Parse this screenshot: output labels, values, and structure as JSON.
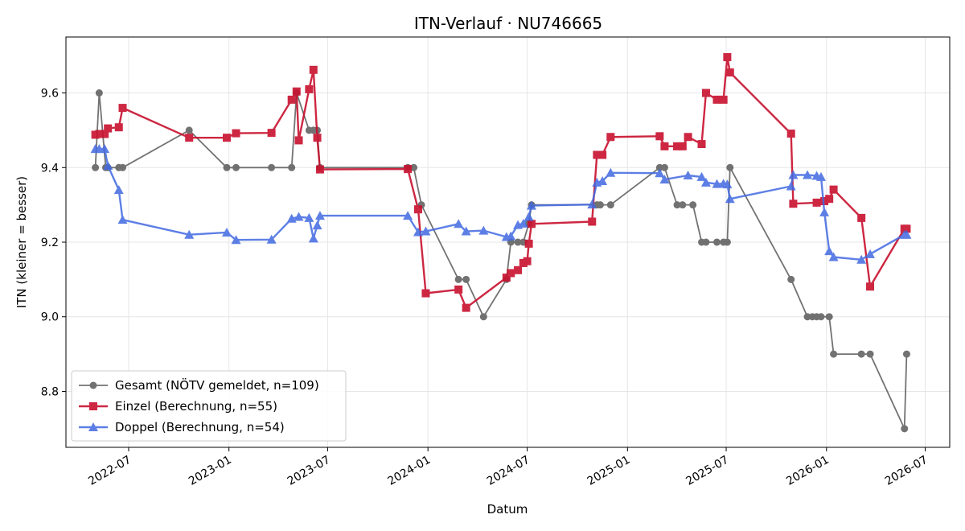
{
  "chart_data": {
    "type": "line",
    "title": "ITN-Verlauf · NU746665",
    "xlabel": "Datum",
    "ylabel": "ITN  (kleiner = besser)",
    "x_axis_type": "date",
    "xlim": [
      "2022-03-08",
      "2026-08-15"
    ],
    "ylim": [
      8.65,
      9.75
    ],
    "yticks": [
      8.8,
      9.0,
      9.2,
      9.4,
      9.6
    ],
    "xticks": [
      "2022-07-01",
      "2023-01-01",
      "2023-07-01",
      "2024-01-01",
      "2024-07-01",
      "2025-01-01",
      "2025-07-01",
      "2026-01-01",
      "2026-07-01"
    ],
    "xtick_labels": [
      "2022-07",
      "2023-01",
      "2023-07",
      "2024-01",
      "2024-07",
      "2025-01",
      "2025-07",
      "2026-01",
      "2026-07"
    ],
    "grid": true,
    "legend_position": "lower-left",
    "series": [
      {
        "name": "Gesamt (NÖTV gemeldet, n=109)",
        "color": "#444444",
        "marker": "circle",
        "points": [
          [
            "2022-05-01",
            9.4
          ],
          [
            "2022-05-08",
            9.6
          ],
          [
            "2022-05-20",
            9.4
          ],
          [
            "2022-05-24",
            9.4
          ],
          [
            "2022-06-13",
            9.4
          ],
          [
            "2022-06-20",
            9.4
          ],
          [
            "2022-10-20",
            9.5
          ],
          [
            "2022-12-28",
            9.4
          ],
          [
            "2023-01-14",
            9.4
          ],
          [
            "2023-03-20",
            9.4
          ],
          [
            "2023-04-26",
            9.4
          ],
          [
            "2023-05-05",
            9.6
          ],
          [
            "2023-05-28",
            9.5
          ],
          [
            "2023-06-05",
            9.5
          ],
          [
            "2023-06-12",
            9.5
          ],
          [
            "2023-06-17",
            9.4
          ],
          [
            "2023-11-25",
            9.4
          ],
          [
            "2023-12-06",
            9.4
          ],
          [
            "2023-12-20",
            9.3
          ],
          [
            "2024-02-26",
            9.1
          ],
          [
            "2024-03-11",
            9.1
          ],
          [
            "2024-04-12",
            9.0
          ],
          [
            "2024-05-24",
            9.1
          ],
          [
            "2024-06-01",
            9.2
          ],
          [
            "2024-06-14",
            9.2
          ],
          [
            "2024-06-24",
            9.2
          ],
          [
            "2024-07-04",
            9.25
          ],
          [
            "2024-07-09",
            9.3
          ],
          [
            "2024-11-06",
            9.3
          ],
          [
            "2024-11-12",
            9.3
          ],
          [
            "2024-12-01",
            9.3
          ],
          [
            "2025-03-01",
            9.4
          ],
          [
            "2025-03-10",
            9.4
          ],
          [
            "2025-04-02",
            9.3
          ],
          [
            "2025-04-12",
            9.3
          ],
          [
            "2025-05-01",
            9.3
          ],
          [
            "2025-05-17",
            9.2
          ],
          [
            "2025-05-25",
            9.2
          ],
          [
            "2025-06-14",
            9.2
          ],
          [
            "2025-06-26",
            9.2
          ],
          [
            "2025-07-03",
            9.2
          ],
          [
            "2025-07-08",
            9.4
          ],
          [
            "2025-10-28",
            9.1
          ],
          [
            "2025-11-27",
            9.0
          ],
          [
            "2025-12-06",
            9.0
          ],
          [
            "2025-12-14",
            9.0
          ],
          [
            "2025-12-22",
            9.0
          ],
          [
            "2026-01-06",
            9.0
          ],
          [
            "2026-01-14",
            8.9
          ],
          [
            "2026-03-06",
            8.9
          ],
          [
            "2026-03-22",
            8.9
          ],
          [
            "2026-05-24",
            8.7
          ],
          [
            "2026-05-28",
            8.9
          ]
        ]
      },
      {
        "name": "Einzel (Berechnung, n=55)",
        "color": "#c8102e",
        "marker": "square",
        "points": [
          [
            "2022-05-01",
            9.488
          ],
          [
            "2022-05-08",
            9.49
          ],
          [
            "2022-05-18",
            9.49
          ],
          [
            "2022-05-24",
            9.505
          ],
          [
            "2022-06-13",
            9.508
          ],
          [
            "2022-06-20",
            9.56
          ],
          [
            "2022-10-20",
            9.48
          ],
          [
            "2022-12-28",
            9.48
          ],
          [
            "2023-01-14",
            9.492
          ],
          [
            "2023-03-20",
            9.493
          ],
          [
            "2023-04-26",
            9.582
          ],
          [
            "2023-05-05",
            9.604
          ],
          [
            "2023-05-09",
            9.473
          ],
          [
            "2023-05-28",
            9.61
          ],
          [
            "2023-06-05",
            9.662
          ],
          [
            "2023-06-12",
            9.48
          ],
          [
            "2023-06-17",
            9.395
          ],
          [
            "2023-11-25",
            9.396
          ],
          [
            "2023-12-14",
            9.288
          ],
          [
            "2023-12-28",
            9.063
          ],
          [
            "2024-02-26",
            9.073
          ],
          [
            "2024-03-11",
            9.024
          ],
          [
            "2024-05-24",
            9.105
          ],
          [
            "2024-06-01",
            9.117
          ],
          [
            "2024-06-14",
            9.125
          ],
          [
            "2024-06-24",
            9.144
          ],
          [
            "2024-07-01",
            9.149
          ],
          [
            "2024-07-04",
            9.196
          ],
          [
            "2024-07-09",
            9.249
          ],
          [
            "2024-10-28",
            9.255
          ],
          [
            "2024-11-06",
            9.434
          ],
          [
            "2024-11-16",
            9.434
          ],
          [
            "2024-12-01",
            9.482
          ],
          [
            "2025-03-01",
            9.484
          ],
          [
            "2025-03-10",
            9.457
          ],
          [
            "2025-04-02",
            9.457
          ],
          [
            "2025-04-12",
            9.457
          ],
          [
            "2025-04-22",
            9.482
          ],
          [
            "2025-05-17",
            9.463
          ],
          [
            "2025-05-25",
            9.6
          ],
          [
            "2025-06-14",
            9.582
          ],
          [
            "2025-06-26",
            9.582
          ],
          [
            "2025-07-03",
            9.696
          ],
          [
            "2025-07-08",
            9.655
          ],
          [
            "2025-10-28",
            9.491
          ],
          [
            "2025-11-01",
            9.303
          ],
          [
            "2025-12-14",
            9.306
          ],
          [
            "2025-12-28",
            9.31
          ],
          [
            "2026-01-06",
            9.316
          ],
          [
            "2026-01-14",
            9.341
          ],
          [
            "2026-03-06",
            9.265
          ],
          [
            "2026-03-22",
            9.081
          ],
          [
            "2026-05-24",
            9.236
          ],
          [
            "2026-05-28",
            9.236
          ]
        ]
      },
      {
        "name": "Doppel (Berechnung, n=54)",
        "color": "#4169e1",
        "marker": "triangle",
        "points": [
          [
            "2022-05-01",
            9.45
          ],
          [
            "2022-05-08",
            9.45
          ],
          [
            "2022-05-18",
            9.45
          ],
          [
            "2022-05-24",
            9.405
          ],
          [
            "2022-06-13",
            9.34
          ],
          [
            "2022-06-20",
            9.26
          ],
          [
            "2022-10-20",
            9.22
          ],
          [
            "2022-12-28",
            9.226
          ],
          [
            "2023-01-14",
            9.206
          ],
          [
            "2023-03-20",
            9.207
          ],
          [
            "2023-04-26",
            9.263
          ],
          [
            "2023-05-09",
            9.268
          ],
          [
            "2023-05-28",
            9.265
          ],
          [
            "2023-06-05",
            9.21
          ],
          [
            "2023-06-12",
            9.245
          ],
          [
            "2023-06-17",
            9.271
          ],
          [
            "2023-11-25",
            9.271
          ],
          [
            "2023-12-14",
            9.227
          ],
          [
            "2023-12-28",
            9.229
          ],
          [
            "2024-02-26",
            9.249
          ],
          [
            "2024-03-11",
            9.229
          ],
          [
            "2024-04-12",
            9.231
          ],
          [
            "2024-05-24",
            9.214
          ],
          [
            "2024-06-01",
            9.216
          ],
          [
            "2024-06-14",
            9.246
          ],
          [
            "2024-06-24",
            9.25
          ],
          [
            "2024-07-04",
            9.268
          ],
          [
            "2024-07-09",
            9.298
          ],
          [
            "2024-10-28",
            9.301
          ],
          [
            "2024-11-06",
            9.36
          ],
          [
            "2024-11-16",
            9.364
          ],
          [
            "2024-12-01",
            9.386
          ],
          [
            "2025-03-01",
            9.385
          ],
          [
            "2025-03-10",
            9.368
          ],
          [
            "2025-04-22",
            9.379
          ],
          [
            "2025-05-17",
            9.375
          ],
          [
            "2025-05-25",
            9.36
          ],
          [
            "2025-06-14",
            9.356
          ],
          [
            "2025-06-26",
            9.357
          ],
          [
            "2025-07-03",
            9.355
          ],
          [
            "2025-07-08",
            9.316
          ],
          [
            "2025-10-28",
            9.35
          ],
          [
            "2025-11-01",
            9.38
          ],
          [
            "2025-11-27",
            9.38
          ],
          [
            "2025-12-14",
            9.378
          ],
          [
            "2025-12-22",
            9.375
          ],
          [
            "2025-12-28",
            9.28
          ],
          [
            "2026-01-06",
            9.176
          ],
          [
            "2026-01-14",
            9.16
          ],
          [
            "2026-03-06",
            9.153
          ],
          [
            "2026-03-22",
            9.168
          ],
          [
            "2026-05-24",
            9.22
          ],
          [
            "2026-05-28",
            9.22
          ]
        ]
      }
    ]
  }
}
